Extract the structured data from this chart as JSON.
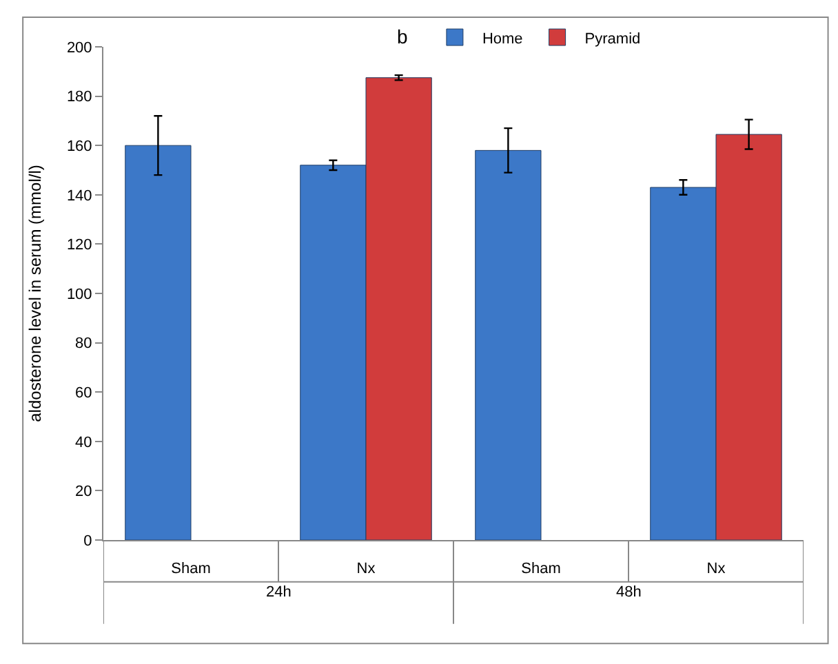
{
  "chart_data": {
    "type": "bar",
    "title": "b",
    "ylabel": "aldosterone level in serum (mmol/l)",
    "categories": [
      "Sham",
      "Nx",
      "Sham",
      "Nx"
    ],
    "series": [
      {
        "name": "Home",
        "color": "#3c78c8",
        "values": [
          160,
          152,
          158,
          143
        ],
        "errors": [
          12,
          2,
          9,
          3
        ]
      },
      {
        "name": "Pyramid",
        "color": "#d13c3c",
        "values": [
          null,
          187.5,
          null,
          164.5
        ],
        "errors": [
          null,
          1,
          null,
          6
        ]
      }
    ],
    "annotations": [
      "24h",
      "48h"
    ],
    "ylim": [
      0,
      200
    ],
    "yticks": [
      0,
      20,
      40,
      60,
      80,
      100,
      120,
      140,
      160,
      180,
      200
    ],
    "legend": "top"
  }
}
